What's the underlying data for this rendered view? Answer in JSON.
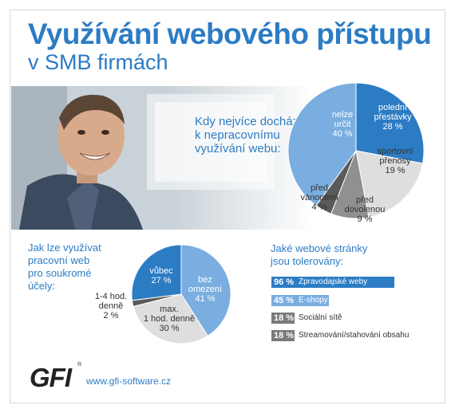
{
  "title": {
    "line1": "Využívání webového přístupu",
    "line2": "v SMB firmách"
  },
  "footer": {
    "logo_text": "GFI",
    "logo_mark": "®",
    "url": "www.gfi-software.cz"
  },
  "chart_data": [
    {
      "type": "pie",
      "title_lines": [
        "Kdy nejvíce dochází",
        "k nepracovnímu",
        "využívání webu:"
      ],
      "slices": [
        {
          "label_lines": [
            "polední",
            "přestávky"
          ],
          "value_text": "28 %",
          "value": 28,
          "color": "#2c7cc4"
        },
        {
          "label_lines": [
            "sportovní",
            "přenosy"
          ],
          "value_text": "19 %",
          "value": 19,
          "color": "#dedede"
        },
        {
          "label_lines": [
            "před",
            "dovolenou"
          ],
          "value_text": "9 %",
          "value": 9,
          "color": "#909090"
        },
        {
          "label_lines": [
            "před",
            "vánocemi"
          ],
          "value_text": "4 %",
          "value": 4,
          "color": "#5a5a5a"
        },
        {
          "label_lines": [
            "nelze",
            "určit"
          ],
          "value_text": "40 %",
          "value": 40,
          "color": "#7aaee0"
        }
      ]
    },
    {
      "type": "pie",
      "title_lines": [
        "Jak lze využívat",
        "pracovní web",
        "pro soukromé",
        "účely:"
      ],
      "slices": [
        {
          "label_lines": [
            "bez",
            "omezení"
          ],
          "value_text": "41 %",
          "value": 41,
          "color": "#7aaee0"
        },
        {
          "label_lines": [
            "max.",
            "1 hod. denně"
          ],
          "value_text": "30 %",
          "value": 30,
          "color": "#dedede"
        },
        {
          "label_lines": [
            "1-4 hod.",
            "denně"
          ],
          "value_text": "2 %",
          "value": 2,
          "color": "#5a5a5a"
        },
        {
          "label_lines": [
            "vůbec"
          ],
          "value_text": "27 %",
          "value": 27,
          "color": "#2c7cc4"
        }
      ]
    },
    {
      "type": "bar",
      "orientation": "horizontal",
      "title_lines": [
        "Jaké webové stránky",
        "jsou tolerovány:"
      ],
      "xlim": [
        0,
        100
      ],
      "bars": [
        {
          "category": "Zpravodajské weby",
          "value": 96,
          "value_text": "96 %",
          "color": "#2c7cc4"
        },
        {
          "category": "E-shopy",
          "value": 45,
          "value_text": "45 %",
          "color": "#7aaee0"
        },
        {
          "category": "Sociální sítě",
          "value": 18,
          "value_text": "18 %",
          "color": "#7a7a7a"
        },
        {
          "category": "Streamování/stahování obsahu",
          "value": 18,
          "value_text": "18 %",
          "color": "#7a7a7a"
        }
      ]
    }
  ]
}
